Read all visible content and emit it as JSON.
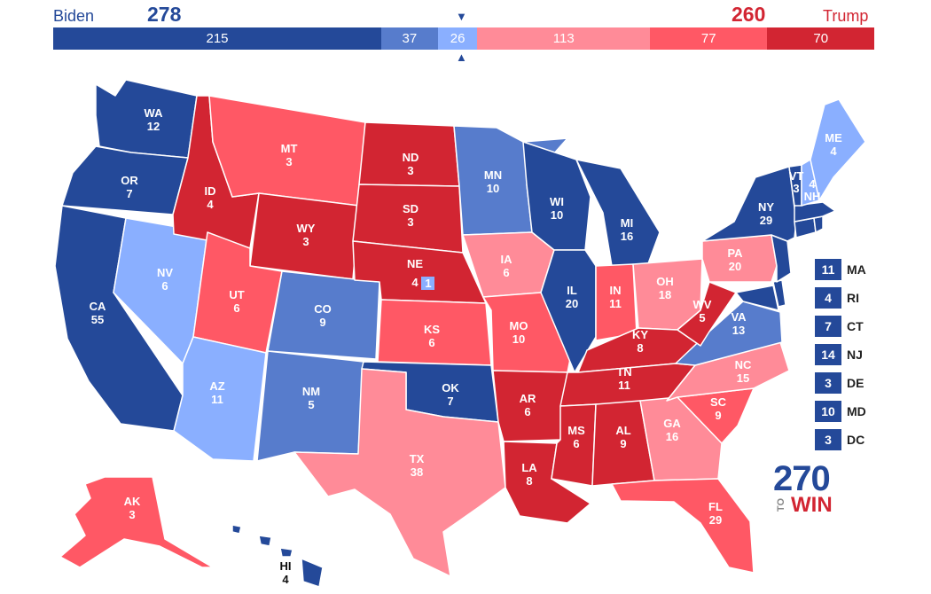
{
  "header": {
    "left_candidate": "Biden",
    "left_total": "278",
    "right_candidate": "Trump",
    "right_total": "260",
    "bar_segments": [
      {
        "label": "215",
        "value": 215,
        "color": "#244999"
      },
      {
        "label": "37",
        "value": 37,
        "color": "#577ccc"
      },
      {
        "label": "26",
        "value": 26,
        "color": "#8aafff"
      },
      {
        "label": "113",
        "value": 113,
        "color": "#ff8b98"
      },
      {
        "label": "77",
        "value": 77,
        "color": "#ff5865"
      },
      {
        "label": "70",
        "value": 70,
        "color": "#d22532"
      }
    ],
    "marker_top": "▼",
    "marker_bottom": "▲"
  },
  "colors": {
    "safe_dem": "#244999",
    "likely_dem": "#577ccc",
    "lean_dem": "#8aafff",
    "lean_rep": "#ff8b98",
    "likely_rep": "#ff5865",
    "safe_rep": "#d22532"
  },
  "states": {
    "WA": {
      "abbr": "WA",
      "ev": "12",
      "rating": "safe_dem"
    },
    "OR": {
      "abbr": "OR",
      "ev": "7",
      "rating": "safe_dem"
    },
    "CA": {
      "abbr": "CA",
      "ev": "55",
      "rating": "safe_dem"
    },
    "NV": {
      "abbr": "NV",
      "ev": "6",
      "rating": "lean_dem"
    },
    "ID": {
      "abbr": "ID",
      "ev": "4",
      "rating": "safe_rep"
    },
    "MT": {
      "abbr": "MT",
      "ev": "3",
      "rating": "likely_rep"
    },
    "WY": {
      "abbr": "WY",
      "ev": "3",
      "rating": "safe_rep"
    },
    "UT": {
      "abbr": "UT",
      "ev": "6",
      "rating": "likely_rep"
    },
    "AZ": {
      "abbr": "AZ",
      "ev": "11",
      "rating": "lean_dem"
    },
    "CO": {
      "abbr": "CO",
      "ev": "9",
      "rating": "likely_dem"
    },
    "NM": {
      "abbr": "NM",
      "ev": "5",
      "rating": "likely_dem"
    },
    "ND": {
      "abbr": "ND",
      "ev": "3",
      "rating": "safe_rep"
    },
    "SD": {
      "abbr": "SD",
      "ev": "3",
      "rating": "safe_rep"
    },
    "NE": {
      "abbr": "NE",
      "ev": "4",
      "rating": "safe_rep",
      "district_ev": "1",
      "district_rating": "lean_dem"
    },
    "KS": {
      "abbr": "KS",
      "ev": "6",
      "rating": "likely_rep"
    },
    "OK": {
      "abbr": "OK",
      "ev": "7",
      "rating": "safe_dem"
    },
    "TX": {
      "abbr": "TX",
      "ev": "38",
      "rating": "lean_rep"
    },
    "MN": {
      "abbr": "MN",
      "ev": "10",
      "rating": "likely_dem"
    },
    "IA": {
      "abbr": "IA",
      "ev": "6",
      "rating": "lean_rep"
    },
    "MO": {
      "abbr": "MO",
      "ev": "10",
      "rating": "likely_rep"
    },
    "AR": {
      "abbr": "AR",
      "ev": "6",
      "rating": "safe_rep"
    },
    "LA": {
      "abbr": "LA",
      "ev": "8",
      "rating": "safe_rep"
    },
    "WI": {
      "abbr": "WI",
      "ev": "10",
      "rating": "safe_dem"
    },
    "IL": {
      "abbr": "IL",
      "ev": "20",
      "rating": "safe_dem"
    },
    "MI": {
      "abbr": "MI",
      "ev": "16",
      "rating": "safe_dem"
    },
    "IN": {
      "abbr": "IN",
      "ev": "11",
      "rating": "likely_rep"
    },
    "OH": {
      "abbr": "OH",
      "ev": "18",
      "rating": "lean_rep"
    },
    "KY": {
      "abbr": "KY",
      "ev": "8",
      "rating": "safe_rep"
    },
    "TN": {
      "abbr": "TN",
      "ev": "11",
      "rating": "safe_rep"
    },
    "MS": {
      "abbr": "MS",
      "ev": "6",
      "rating": "safe_rep"
    },
    "AL": {
      "abbr": "AL",
      "ev": "9",
      "rating": "safe_rep"
    },
    "GA": {
      "abbr": "GA",
      "ev": "16",
      "rating": "lean_rep"
    },
    "FL": {
      "abbr": "FL",
      "ev": "29",
      "rating": "likely_rep"
    },
    "SC": {
      "abbr": "SC",
      "ev": "9",
      "rating": "likely_rep"
    },
    "NC": {
      "abbr": "NC",
      "ev": "15",
      "rating": "lean_rep"
    },
    "VA": {
      "abbr": "VA",
      "ev": "13",
      "rating": "likely_dem"
    },
    "WV": {
      "abbr": "WV",
      "ev": "5",
      "rating": "safe_rep"
    },
    "PA": {
      "abbr": "PA",
      "ev": "20",
      "rating": "lean_rep"
    },
    "NY": {
      "abbr": "NY",
      "ev": "29",
      "rating": "safe_dem"
    },
    "VT": {
      "abbr": "VT",
      "ev": "3",
      "rating": "safe_dem"
    },
    "NH": {
      "abbr": "NH",
      "ev": "4",
      "rating": "lean_dem"
    },
    "ME": {
      "abbr": "ME",
      "ev": "4",
      "rating": "lean_dem"
    },
    "AK": {
      "abbr": "AK",
      "ev": "3",
      "rating": "likely_rep"
    },
    "HI": {
      "abbr": "HI",
      "ev": "4",
      "rating": "safe_dem"
    },
    "MD": {
      "abbr": "MD",
      "ev": "10",
      "rating": "safe_dem"
    },
    "DE": {
      "abbr": "DE",
      "ev": "3",
      "rating": "safe_dem"
    },
    "NJ": {
      "abbr": "NJ",
      "ev": "14",
      "rating": "safe_dem"
    },
    "CT": {
      "abbr": "CT",
      "ev": "7",
      "rating": "safe_dem"
    },
    "RI": {
      "abbr": "RI",
      "ev": "4",
      "rating": "safe_dem"
    },
    "MA": {
      "abbr": "MA",
      "ev": "11",
      "rating": "safe_dem"
    }
  },
  "small_states": [
    {
      "abbr": "MA",
      "ev": "11",
      "rating": "safe_dem"
    },
    {
      "abbr": "RI",
      "ev": "4",
      "rating": "safe_dem"
    },
    {
      "abbr": "CT",
      "ev": "7",
      "rating": "safe_dem"
    },
    {
      "abbr": "NJ",
      "ev": "14",
      "rating": "safe_dem"
    },
    {
      "abbr": "DE",
      "ev": "3",
      "rating": "safe_dem"
    },
    {
      "abbr": "MD",
      "ev": "10",
      "rating": "safe_dem"
    },
    {
      "abbr": "DC",
      "ev": "3",
      "rating": "safe_dem"
    }
  ],
  "logo": {
    "number": "270",
    "to": "TO",
    "win": "WIN"
  }
}
